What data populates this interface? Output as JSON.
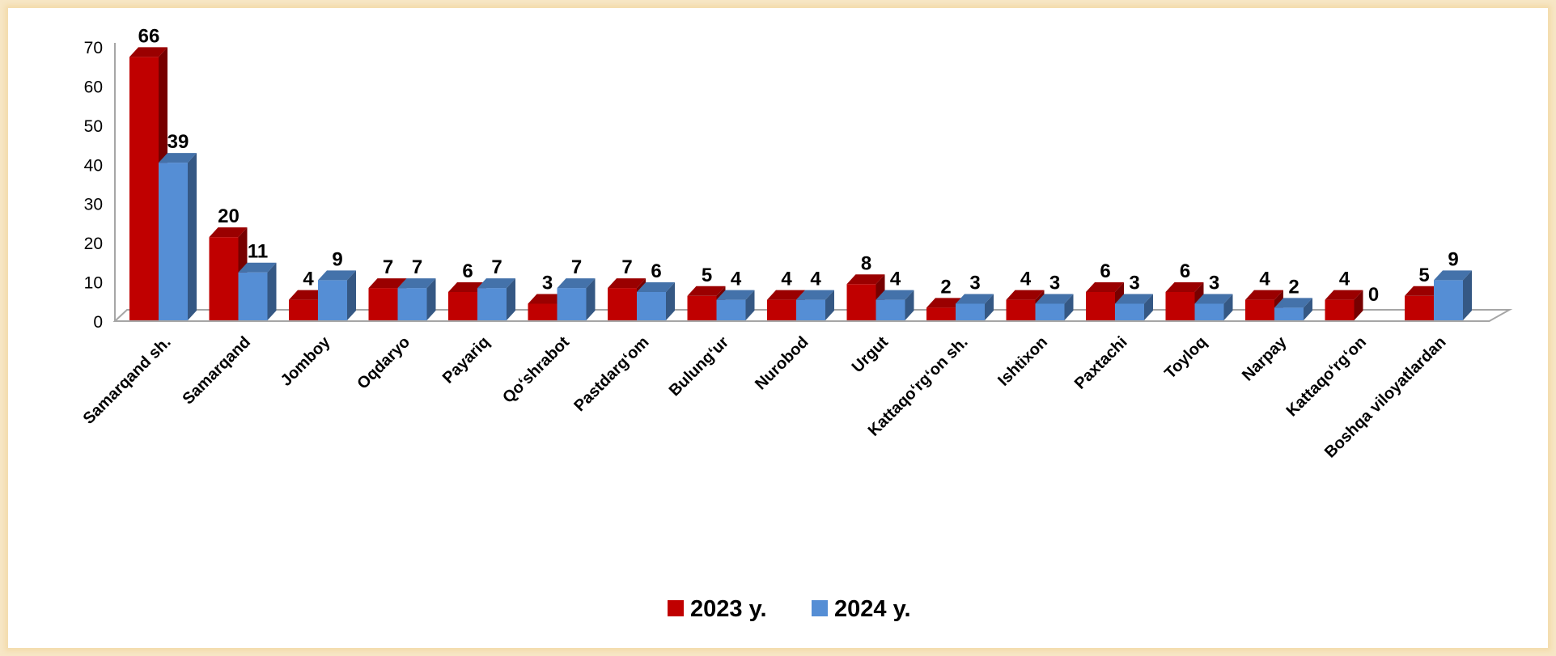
{
  "chart_data": {
    "type": "bar",
    "title": "",
    "xlabel": "",
    "ylabel": "",
    "ylim": [
      0,
      70
    ],
    "yticks": [
      0,
      10,
      20,
      30,
      40,
      50,
      60,
      70
    ],
    "grid": false,
    "legend_position": "bottom",
    "categories": [
      "Samarqand sh.",
      "Samarqand",
      "Jomboy",
      "Oqdaryo",
      "Payariq",
      "Qo‘shrabot",
      "Pastdarg‘om",
      "Bulung‘ur",
      "Nurobod",
      "Urgut",
      "Kattaqo‘rg‘on sh.",
      "Ishtixon",
      "Paxtachi",
      "Toyloq",
      "Narpay",
      "Kattaqo‘rg‘on",
      "Boshqa viloyatlardan"
    ],
    "series": [
      {
        "name": "2023 y.",
        "color": "#c00000",
        "values": [
          66,
          20,
          4,
          7,
          6,
          3,
          7,
          5,
          4,
          8,
          2,
          4,
          6,
          6,
          4,
          4,
          5
        ]
      },
      {
        "name": "2024 y.",
        "color": "#558ed5",
        "values": [
          39,
          11,
          9,
          7,
          7,
          7,
          6,
          4,
          4,
          4,
          3,
          3,
          3,
          3,
          2,
          0,
          9
        ]
      }
    ]
  }
}
